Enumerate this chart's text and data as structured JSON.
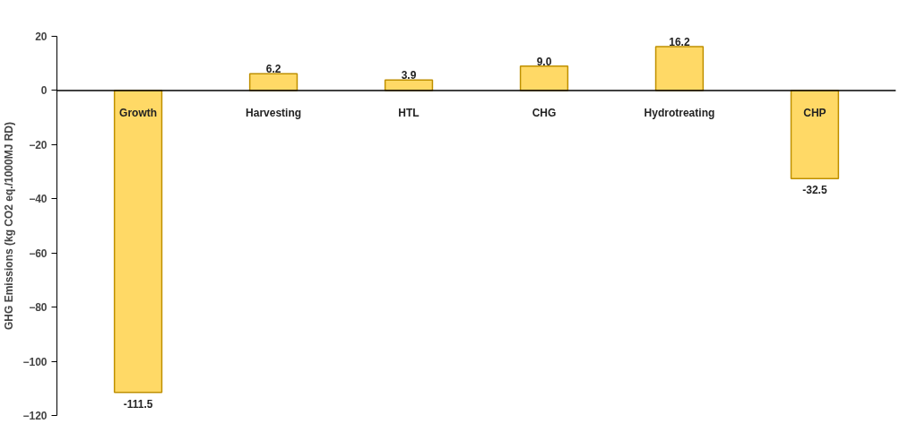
{
  "chart_data": {
    "type": "bar",
    "ylabel": "GHG Emissions (kg CO2 eq./1000MJ RD)",
    "categories": [
      "Growth",
      "Harvesting",
      "HTL",
      "CHG",
      "Hydrotreating",
      "CHP"
    ],
    "values": [
      -111.5,
      6.2,
      3.9,
      9.0,
      16.2,
      -32.5
    ],
    "value_labels": [
      "-111.5",
      "6.2",
      "3.9",
      "9.0",
      "16.2",
      "-32.5"
    ],
    "color": "#ffd966",
    "ylim": [
      -120,
      20
    ],
    "yticks": [
      -120,
      -100,
      -80,
      -60,
      -40,
      -20,
      0,
      20
    ],
    "grid": false
  }
}
